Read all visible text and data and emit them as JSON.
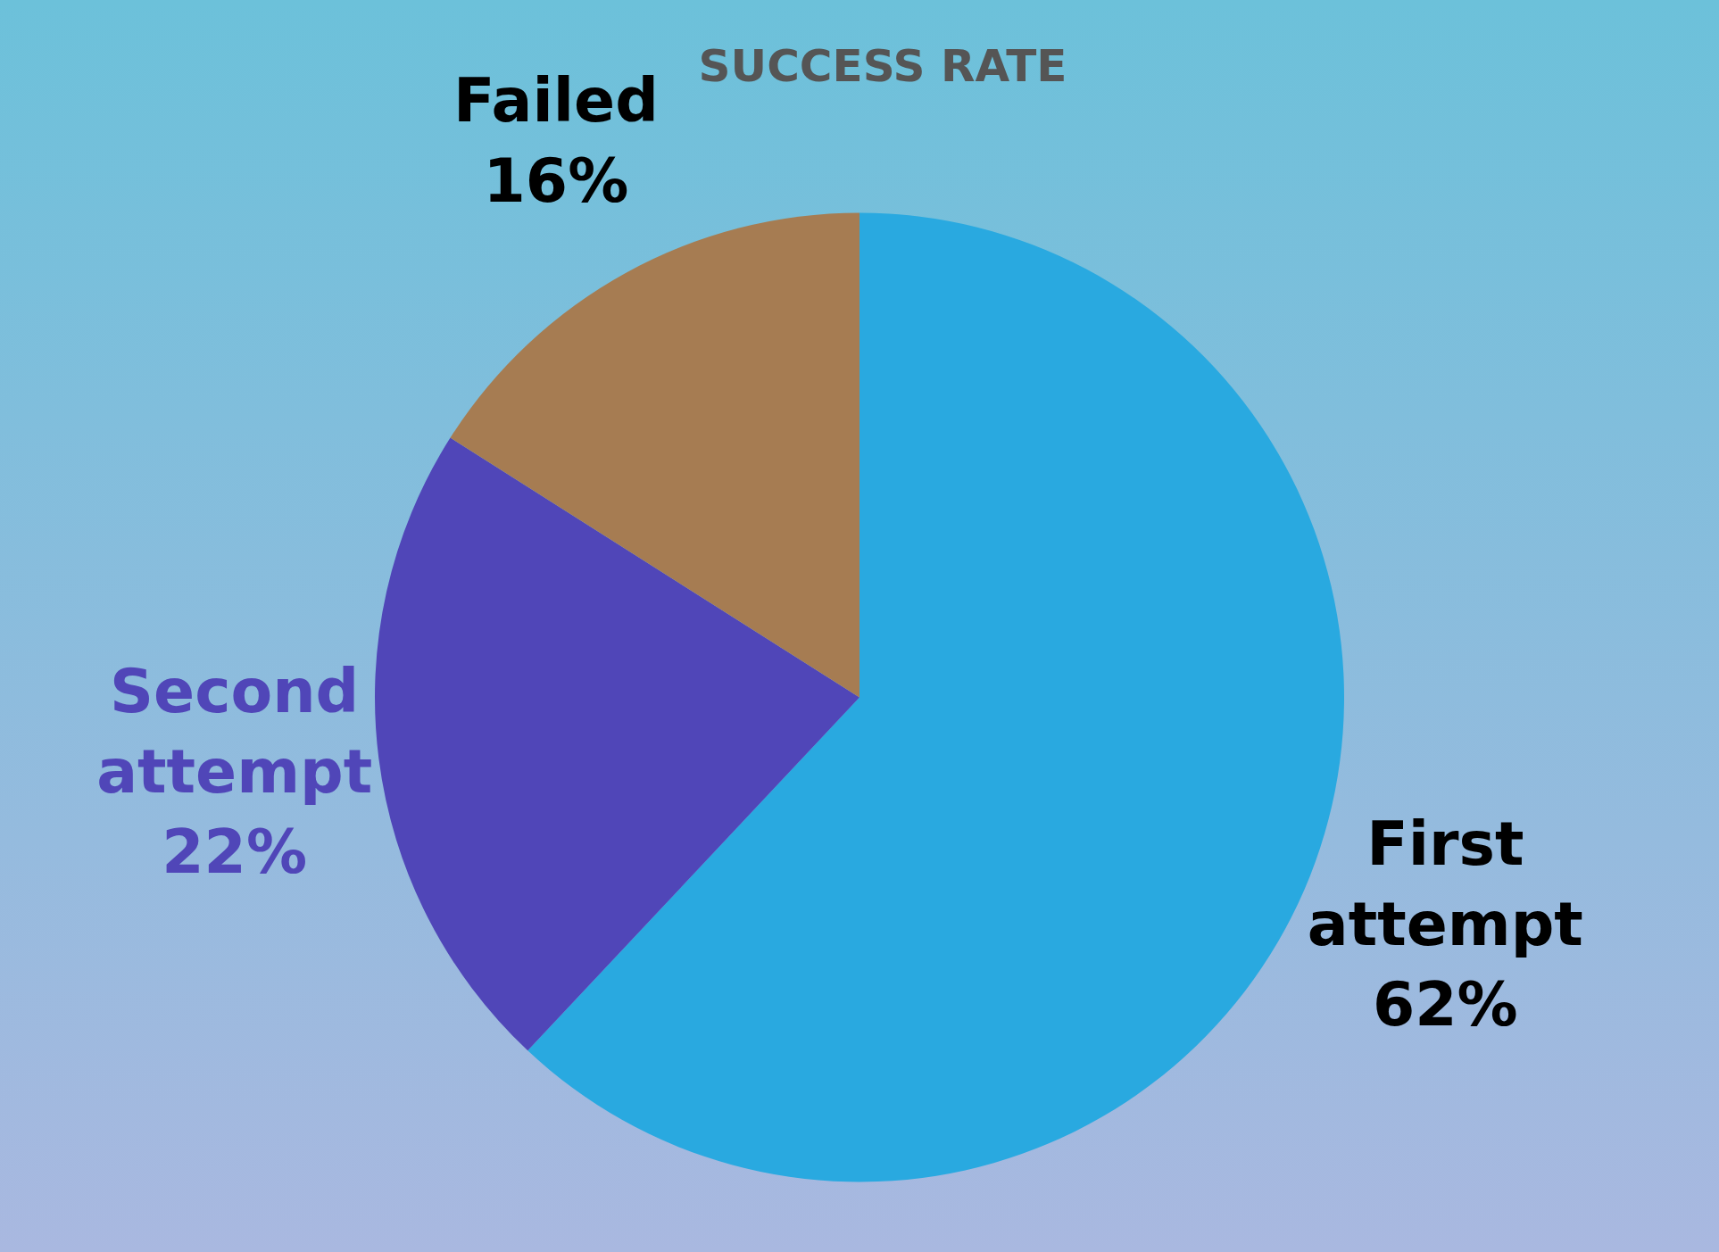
{
  "chart_data": {
    "type": "pie",
    "title": "SUCCESS RATE",
    "categories": [
      "First attempt",
      "Second attempt",
      "Failed"
    ],
    "values": [
      62,
      22,
      16
    ],
    "colors": [
      "#29a9e0",
      "#5046b8",
      "#a67c52"
    ],
    "value_labels": [
      "62%",
      "22%",
      "16%"
    ],
    "legend": false
  }
}
